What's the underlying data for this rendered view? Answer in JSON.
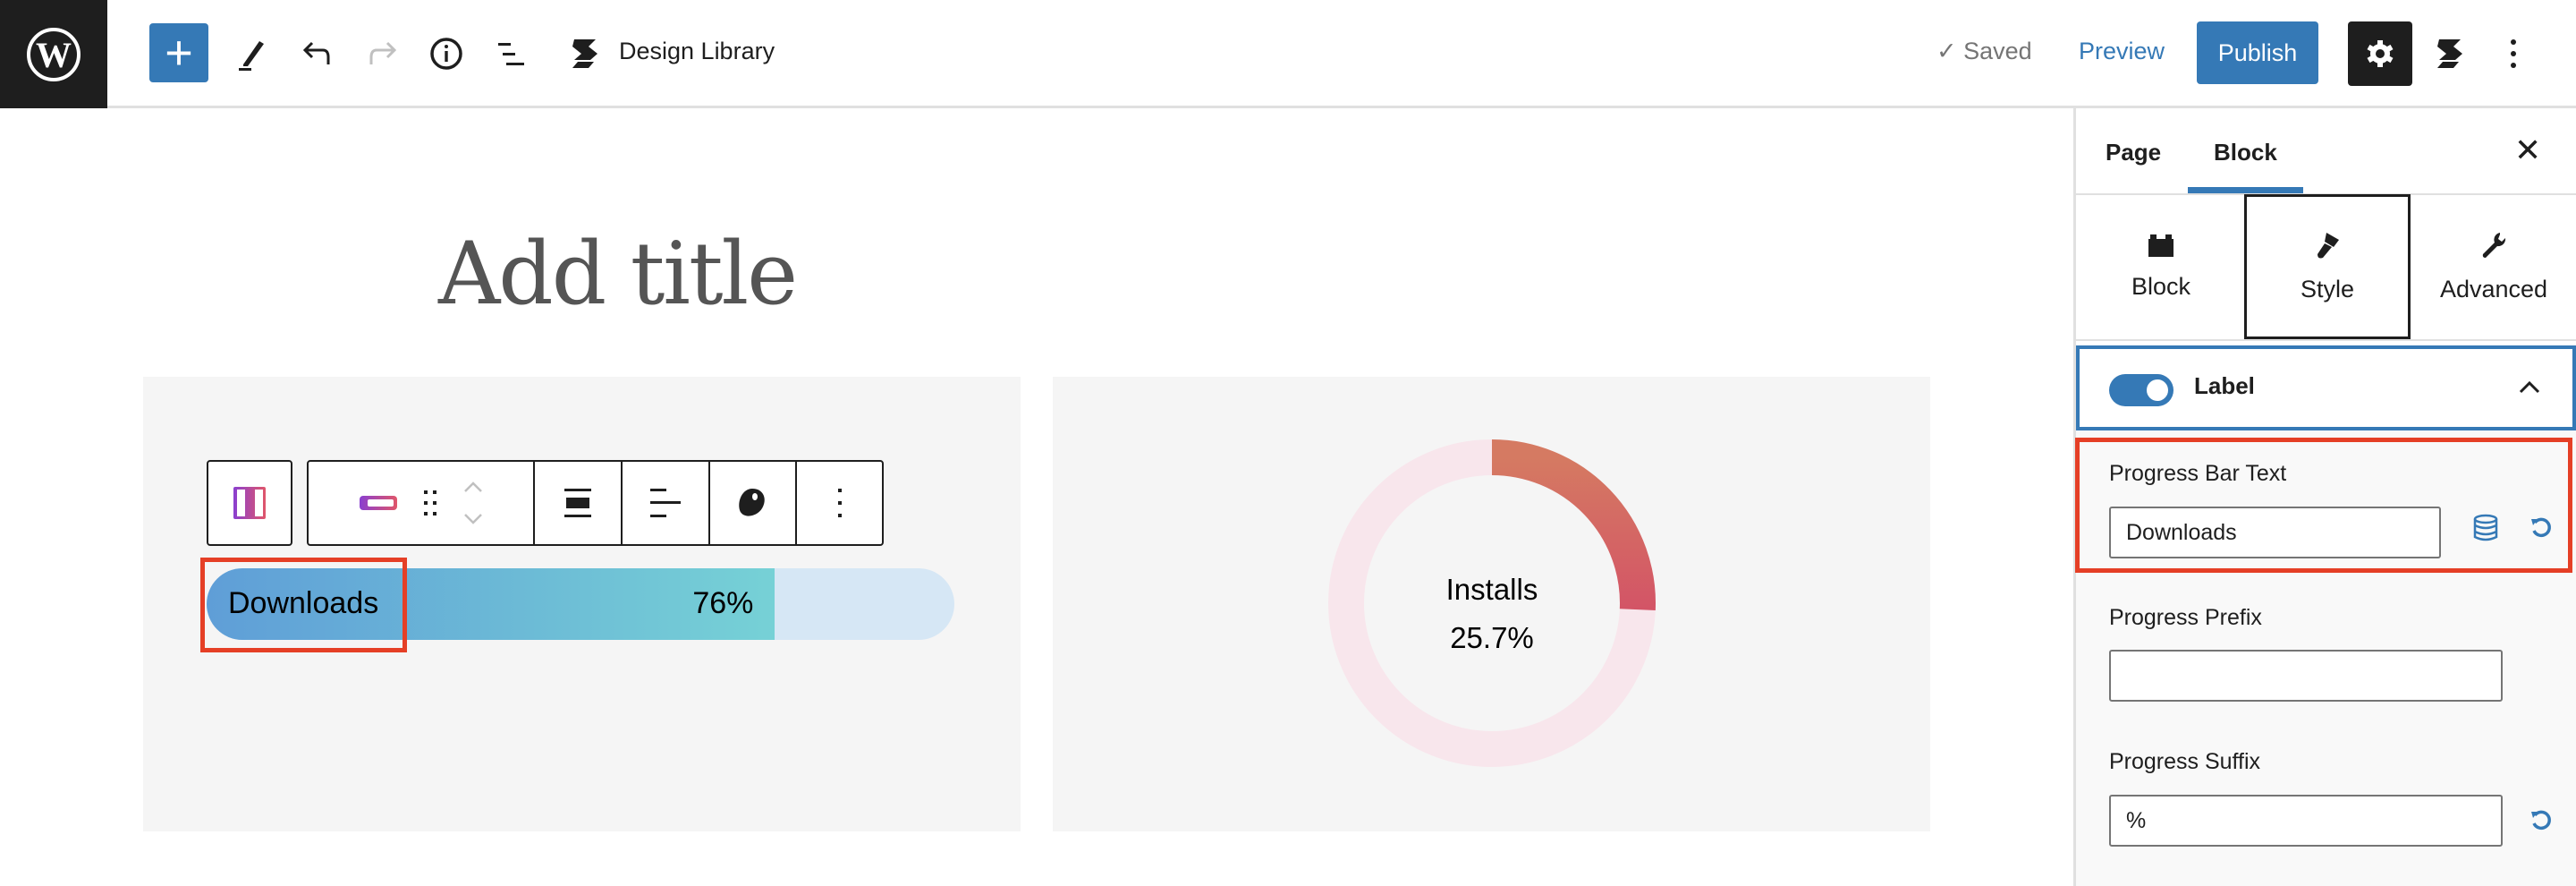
{
  "header": {
    "document_title": "Design Library",
    "saved_label": "Saved",
    "preview_label": "Preview",
    "publish_label": "Publish",
    "add_label": "+"
  },
  "canvas": {
    "post_title_placeholder": "Add title",
    "progress_bar": {
      "label": "Downloads",
      "value": 76,
      "value_text": "76%",
      "colors": {
        "start": "#5f9ed7",
        "end": "#76d1d6",
        "track": "#d6e7f5"
      }
    },
    "circle_progress": {
      "label": "Installs",
      "value": 25.7,
      "value_text": "25.7%",
      "colors": {
        "start": "#d57a62",
        "end": "#d35466",
        "track": "#f8e6ec"
      }
    }
  },
  "sidebar": {
    "tabs": [
      {
        "label": "Page"
      },
      {
        "label": "Block",
        "active": true
      }
    ],
    "subtabs": [
      {
        "label": "Block",
        "icon": "block-icon"
      },
      {
        "label": "Style",
        "icon": "brush-icon",
        "active": true
      },
      {
        "label": "Advanced",
        "icon": "wrench-icon"
      }
    ],
    "label_panel": {
      "title": "Label",
      "enabled": true
    },
    "fields": {
      "bar_text": {
        "label": "Progress Bar Text",
        "value": "Downloads"
      },
      "prefix": {
        "label": "Progress Prefix",
        "value": ""
      },
      "suffix": {
        "label": "Progress Suffix",
        "value": "%"
      }
    }
  },
  "colors": {
    "accent": "#3579b6",
    "highlight": "#e53f26",
    "dark": "#1e1e1e"
  }
}
